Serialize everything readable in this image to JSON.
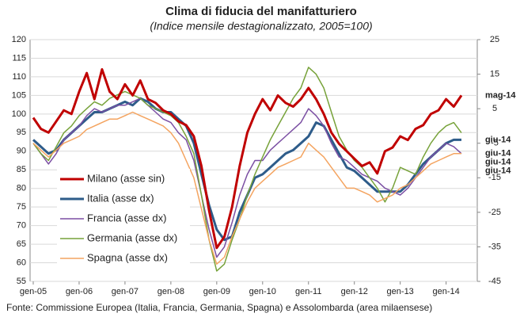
{
  "chart_data": {
    "type": "line",
    "title": "Clima di fiducia del manifatturiero",
    "subtitle": "(Indice mensile destagionalizzato, 2005=100)",
    "source": "Fonte: Commissione Europea (Italia, Francia, Germania, Spagna) e Assolombarda (area milaensese)",
    "categories": [
      "gen-05",
      null,
      null,
      null,
      null,
      null,
      "gen-06",
      null,
      null,
      null,
      null,
      null,
      "gen-07",
      null,
      null,
      null,
      null,
      null,
      "gen-08",
      null,
      null,
      null,
      null,
      null,
      "gen-09",
      null,
      null,
      null,
      null,
      null,
      "gen-10",
      null,
      null,
      null,
      null,
      null,
      "gen-11",
      null,
      null,
      null,
      null,
      null,
      "gen-12",
      null,
      null,
      null,
      null,
      null,
      "gen-13",
      null,
      null,
      null,
      null,
      null,
      "gen-14",
      null,
      null
    ],
    "ylim": [
      55,
      120
    ],
    "yticks": [
      55,
      60,
      65,
      70,
      75,
      80,
      85,
      90,
      95,
      100,
      105,
      110,
      115,
      120
    ],
    "y2lim": [
      -45,
      25
    ],
    "y2ticks": [
      -45,
      -35,
      -25,
      -15,
      -5,
      5,
      15,
      25
    ],
    "grid": true,
    "series": [
      {
        "name": "Milano (asse sin)",
        "color": "#c00000",
        "line_width": 3,
        "axis": "y",
        "end_label": "mag-14",
        "values": [
          99,
          96,
          95,
          98,
          101,
          100,
          106,
          111,
          104,
          112,
          106,
          104,
          108,
          105,
          109,
          104,
          103,
          101,
          100,
          98,
          97,
          94,
          86,
          74,
          64,
          67,
          75,
          86,
          95,
          100,
          104,
          101,
          105,
          103,
          102,
          104,
          107,
          104,
          100,
          95,
          92,
          90,
          88,
          86,
          87,
          84,
          90,
          91,
          94,
          93,
          96,
          97,
          100,
          101,
          104,
          102,
          105
        ]
      },
      {
        "name": "Italia (asse dx)",
        "color": "#2e5c8a",
        "line_width": 3,
        "axis": "y2",
        "end_label": "giu-14",
        "values": [
          -4,
          -6,
          -8,
          -7,
          -4,
          -2,
          0,
          2,
          4,
          4,
          5,
          6,
          7,
          6,
          8,
          7,
          5,
          4,
          4,
          2,
          0,
          -5,
          -14,
          -23,
          -30,
          -33,
          -32,
          -25,
          -20,
          -15,
          -14,
          -12,
          -10,
          -8,
          -7,
          -5,
          -3,
          1,
          0,
          -4,
          -8,
          -12,
          -13,
          -15,
          -17,
          -19,
          -19,
          -19,
          -19,
          -17,
          -14,
          -11,
          -9,
          -7,
          -5,
          -4,
          -4
        ]
      },
      {
        "name": "Francia (asse dx)",
        "color": "#7b4fa3",
        "line_width": 1.5,
        "axis": "y2",
        "end_label": "giu-14",
        "values": [
          -5,
          -8,
          -11,
          -8,
          -4,
          -2,
          0,
          3,
          5,
          4,
          5,
          6,
          6,
          7,
          8,
          6,
          4,
          2,
          1,
          -2,
          -4,
          -10,
          -20,
          -30,
          -38,
          -35,
          -28,
          -20,
          -14,
          -10,
          -10,
          -7,
          -5,
          -3,
          -1,
          1,
          5,
          3,
          0,
          -5,
          -9,
          -10,
          -12,
          -14,
          -15,
          -16,
          -18,
          -19,
          -20,
          -18,
          -15,
          -12,
          -9,
          -7,
          -5,
          -6,
          -8
        ]
      },
      {
        "name": "Germania (asse dx)",
        "color": "#77a23a",
        "line_width": 1.5,
        "axis": "y2",
        "end_label": "giu-14",
        "values": [
          -5,
          -8,
          -10,
          -6,
          -2,
          0,
          3,
          5,
          7,
          6,
          8,
          9,
          10,
          9,
          8,
          6,
          5,
          4,
          3,
          1,
          -3,
          -8,
          -20,
          -33,
          -42,
          -40,
          -33,
          -27,
          -20,
          -14,
          -9,
          -4,
          0,
          4,
          8,
          11,
          17,
          15,
          11,
          4,
          -3,
          -7,
          -10,
          -12,
          -15,
          -18,
          -22,
          -18,
          -12,
          -13,
          -14,
          -9,
          -5,
          -2,
          0,
          1,
          -2
        ]
      },
      {
        "name": "Spagna (asse dx)",
        "color": "#f4a460",
        "line_width": 1.5,
        "axis": "y2",
        "end_label": "giu-14",
        "values": [
          -5,
          -7,
          -9,
          -7,
          -5,
          -4,
          -3,
          -1,
          0,
          1,
          2,
          2,
          3,
          4,
          3,
          2,
          1,
          0,
          -2,
          -5,
          -10,
          -15,
          -24,
          -33,
          -40,
          -38,
          -32,
          -27,
          -22,
          -18,
          -16,
          -14,
          -12,
          -11,
          -10,
          -9,
          -5,
          -7,
          -9,
          -12,
          -15,
          -18,
          -18,
          -19,
          -20,
          -22,
          -21,
          -20,
          -18,
          -17,
          -15,
          -13,
          -11,
          -10,
          -9,
          -8,
          -8
        ]
      }
    ]
  }
}
